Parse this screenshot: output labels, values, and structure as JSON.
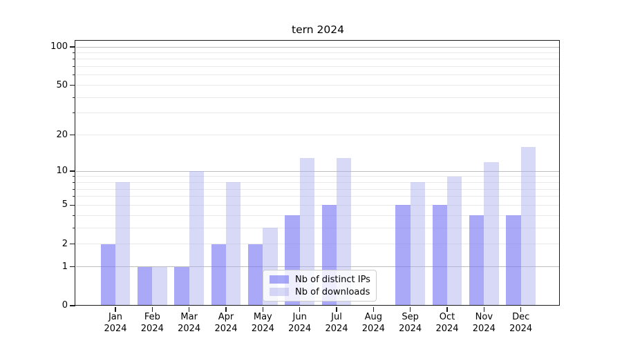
{
  "chart_data": {
    "type": "bar",
    "title": "tern 2024",
    "categories": [
      "Jan 2024",
      "Feb 2024",
      "Mar 2024",
      "Apr 2024",
      "May 2024",
      "Jun 2024",
      "Jul 2024",
      "Aug 2024",
      "Sep 2024",
      "Oct 2024",
      "Nov 2024",
      "Dec 2024"
    ],
    "x_tick_lines": [
      [
        "Jan",
        "2024"
      ],
      [
        "Feb",
        "2024"
      ],
      [
        "Mar",
        "2024"
      ],
      [
        "Apr",
        "2024"
      ],
      [
        "May",
        "2024"
      ],
      [
        "Jun",
        "2024"
      ],
      [
        "Jul",
        "2024"
      ],
      [
        "Aug",
        "2024"
      ],
      [
        "Sep",
        "2024"
      ],
      [
        "Oct",
        "2024"
      ],
      [
        "Nov",
        "2024"
      ],
      [
        "Dec",
        "2024"
      ]
    ],
    "series": [
      {
        "name": "Nb of distinct IPs",
        "color": "rgba(116,116,242,0.62)",
        "values": [
          2,
          1,
          1,
          2,
          2,
          4,
          5,
          0,
          5,
          5,
          4,
          4
        ]
      },
      {
        "name": "Nb of downloads",
        "color": "rgba(170,170,238,0.46)",
        "values": [
          8,
          1,
          10,
          8,
          3,
          13,
          13,
          0,
          8,
          9,
          12,
          16
        ]
      }
    ],
    "y_scale": "log1p",
    "ylim": [
      0,
      100
    ],
    "y_ticks": [
      0,
      1,
      2,
      5,
      10,
      20,
      50,
      100
    ],
    "y_tick_labels": [
      "0",
      "1",
      "2",
      "5",
      "10",
      "20",
      "50",
      "100"
    ],
    "grid_major": [
      1,
      10,
      100
    ],
    "grid_minor": [
      2,
      3,
      4,
      5,
      6,
      7,
      8,
      9,
      20,
      30,
      40,
      50,
      60,
      70,
      80,
      90
    ],
    "legend_position": "lower center",
    "grid": "on"
  },
  "colors": {
    "grid_major": "#bdbdbd",
    "grid_minor": "#e9e9e9",
    "axis_frame": "#1a1a1a",
    "text": "#000000",
    "background": "#ffffff",
    "legend_border": "#cccccc"
  }
}
